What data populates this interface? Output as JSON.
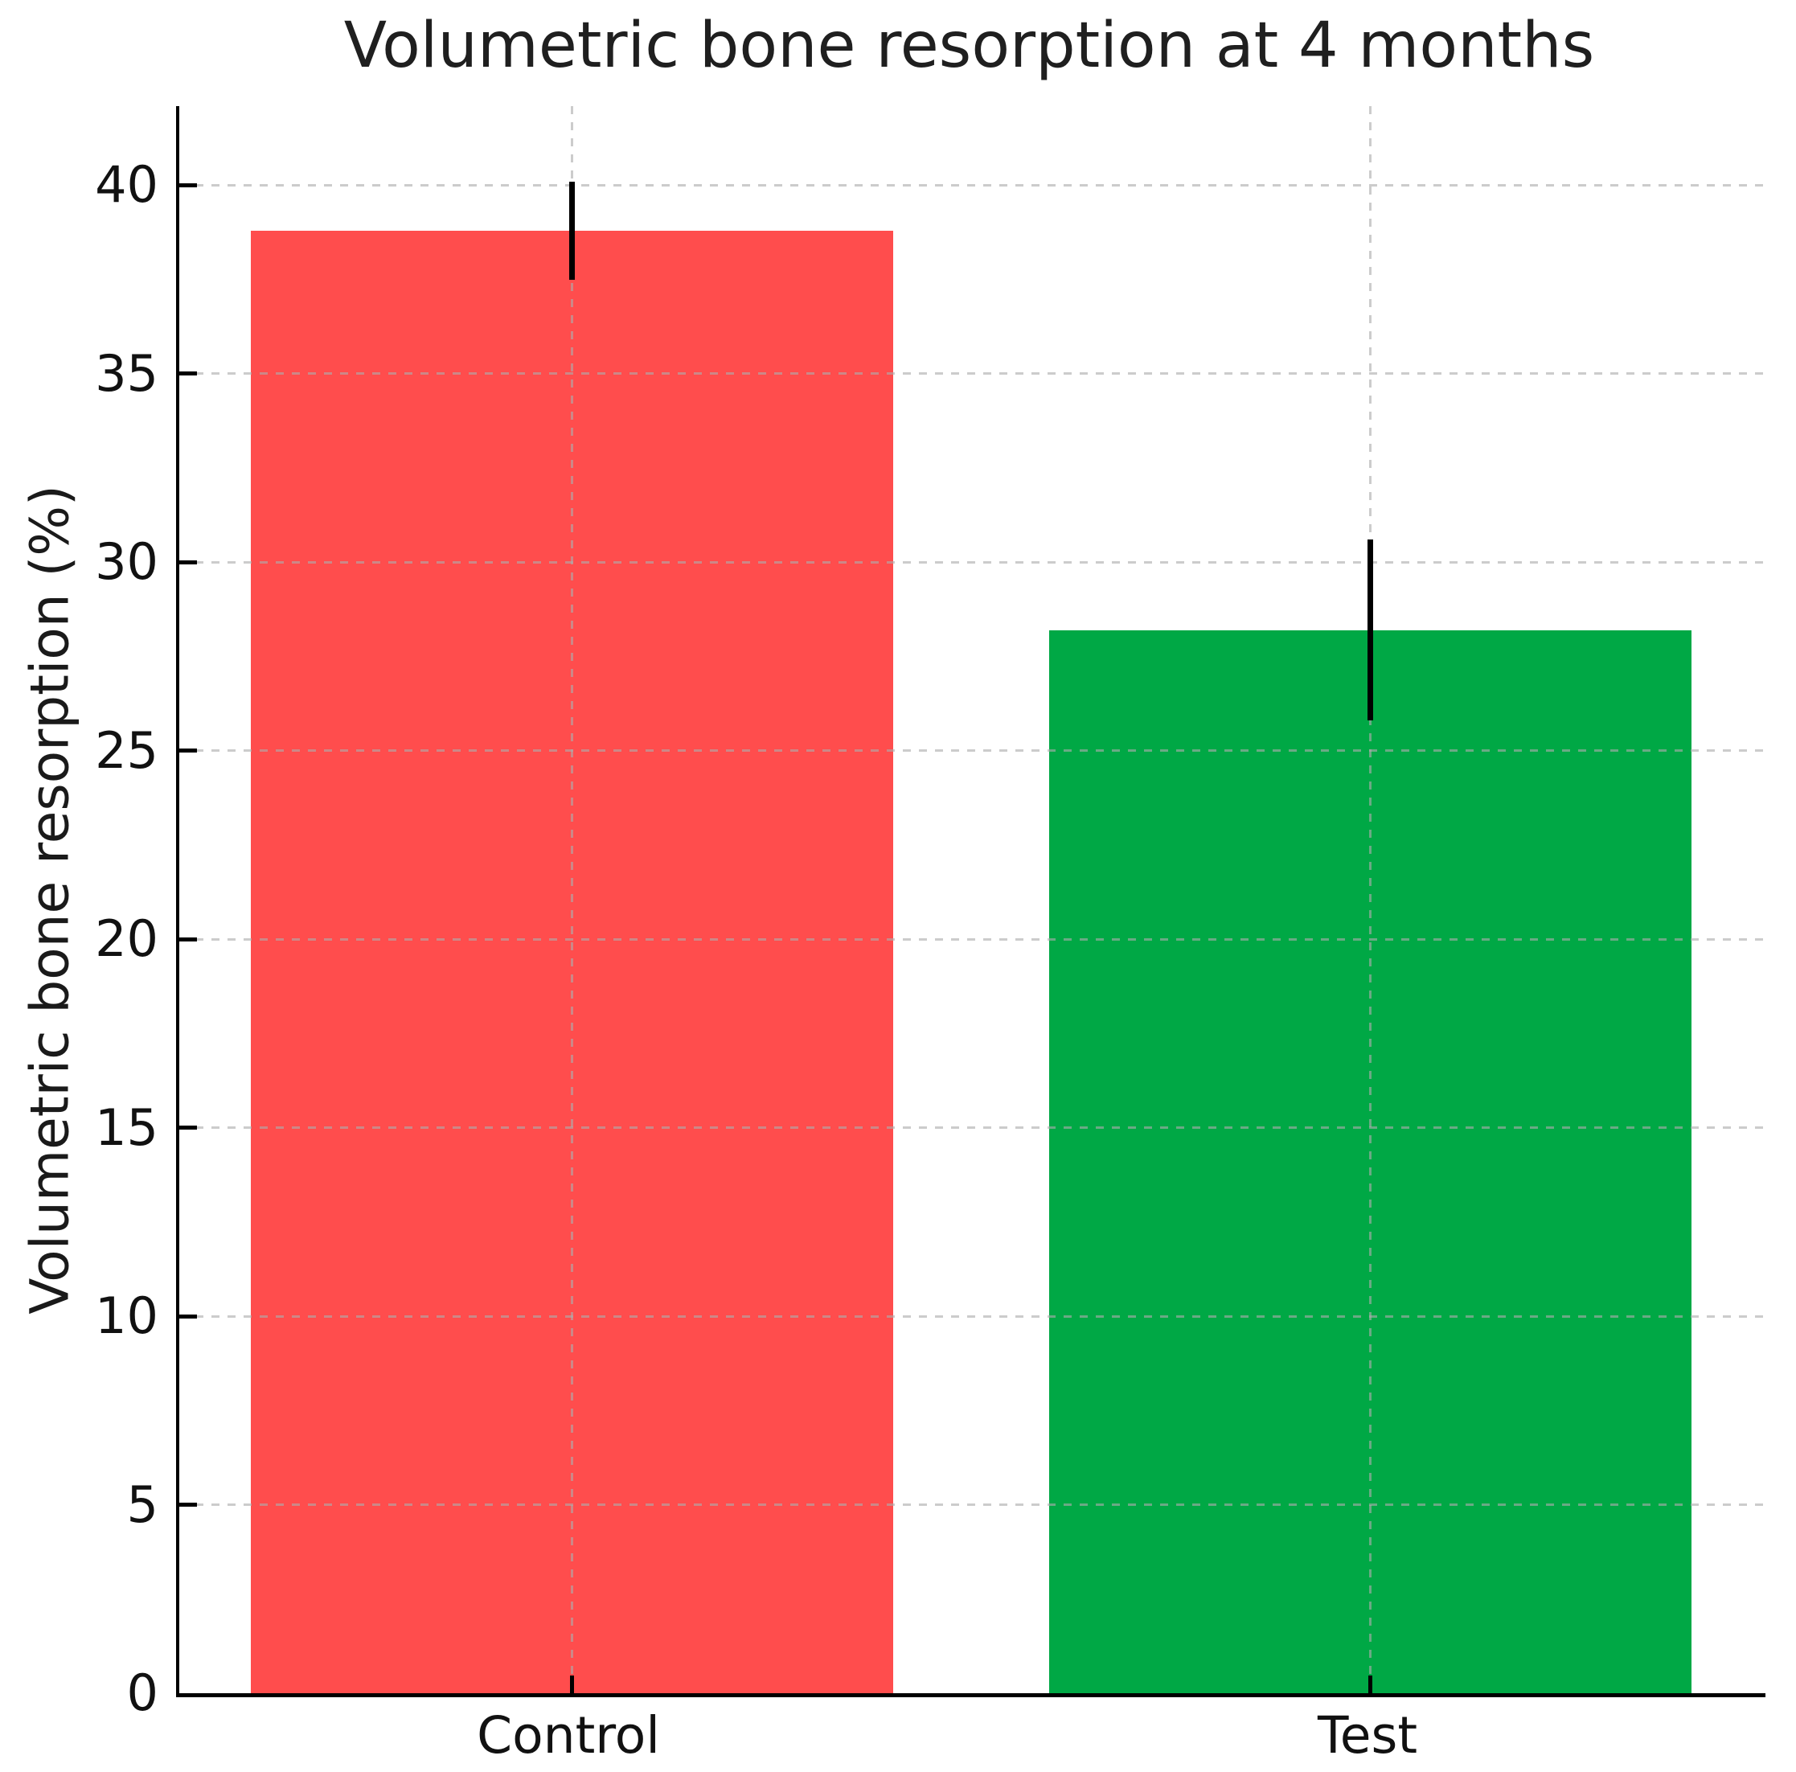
{
  "chart_data": {
    "type": "bar",
    "title": "Volumetric bone resorption at 4 months",
    "xlabel": "",
    "ylabel": "Volumetric bone resorption (%)",
    "categories": [
      "Control",
      "Test"
    ],
    "series": [
      {
        "name": "Volumetric bone resorption (%)",
        "values": [
          38.8,
          28.2
        ],
        "errors": [
          1.3,
          2.4
        ]
      }
    ],
    "bar_colors": [
      "#ff4d4d",
      "#00a845"
    ],
    "error_bar_color": "#000000",
    "axis_color": "#000000",
    "text_color": "#1a1a1a",
    "grid_color": "#d4d4d4",
    "grid_style": "dashed",
    "grid_axes": "both",
    "yticks": [
      0,
      5,
      10,
      15,
      20,
      25,
      30,
      35,
      40
    ],
    "ylim": [
      0,
      42.1
    ],
    "legend_visible": false,
    "spines": "left-bottom-only",
    "tick_direction": "in"
  }
}
